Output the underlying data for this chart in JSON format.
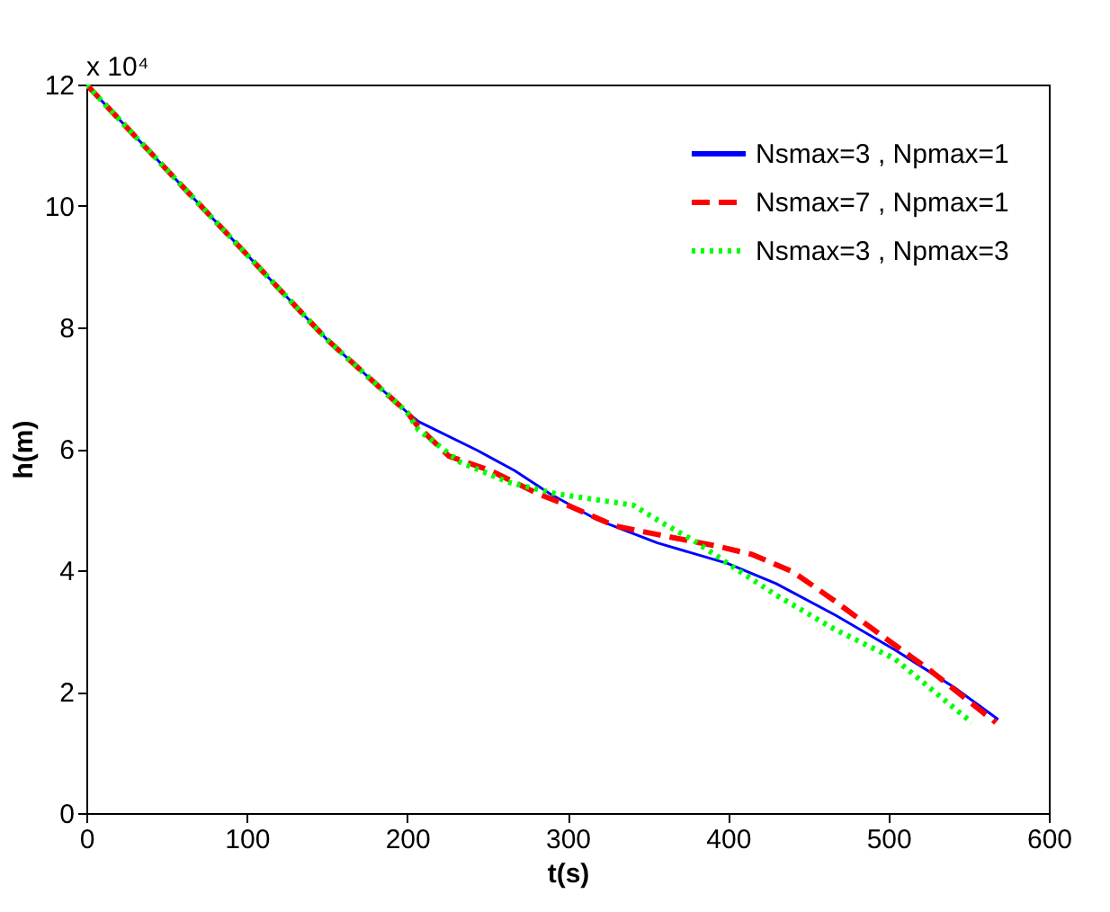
{
  "chart_data": {
    "type": "line",
    "xlabel": "t(s)",
    "ylabel": "h(m)",
    "annotations": [
      "x 10⁴"
    ],
    "xlim": [
      0,
      600
    ],
    "xticks": [
      0,
      100,
      200,
      300,
      400,
      500,
      600
    ],
    "ylim": [
      0,
      12
    ],
    "yticks": [
      0,
      2,
      4,
      6,
      8,
      10,
      12
    ],
    "grid": false,
    "legend": "top right",
    "series": [
      {
        "name": "Nsmax=3 , Npmax=1",
        "color": "#0000ff",
        "line_style": "solid",
        "x": [
          0,
          50,
          100,
          150,
          200,
          207,
          244,
          267,
          289,
          318.5,
          356,
          400,
          430,
          467,
          504,
          541,
          568.5
        ],
        "values": [
          12,
          10.6,
          9.2,
          7.8,
          6.6,
          6.45,
          5.97,
          5.64,
          5.26,
          4.83,
          4.45,
          4.11,
          3.78,
          3.26,
          2.69,
          2.07,
          1.54
        ]
      },
      {
        "name": "Nsmax=7 , Npmax=1",
        "color": "#ff0000",
        "line_style": "dashed",
        "x": [
          0,
          50,
          100,
          150,
          200,
          207,
          226,
          252,
          281.5,
          300,
          329.6,
          355.6,
          392.6,
          415,
          440.7,
          466.7,
          496,
          526,
          567
        ],
        "values": [
          12,
          10.6,
          9.2,
          7.8,
          6.6,
          6.36,
          5.88,
          5.64,
          5.26,
          5.07,
          4.73,
          4.59,
          4.4,
          4.26,
          3.97,
          3.49,
          2.92,
          2.35,
          1.49
        ]
      },
      {
        "name": "Nsmax=3 , Npmax=3",
        "color": "#00ff00",
        "line_style": "dotted",
        "x": [
          0,
          50,
          100,
          150,
          200,
          207,
          233,
          263,
          292.6,
          318.5,
          341,
          359,
          378,
          400,
          430,
          467,
          504,
          530,
          552
        ],
        "values": [
          12,
          10.6,
          9.2,
          7.8,
          6.6,
          6.31,
          5.78,
          5.45,
          5.26,
          5.16,
          5.07,
          4.78,
          4.5,
          4.11,
          3.59,
          3.02,
          2.54,
          1.97,
          1.49
        ]
      }
    ]
  }
}
